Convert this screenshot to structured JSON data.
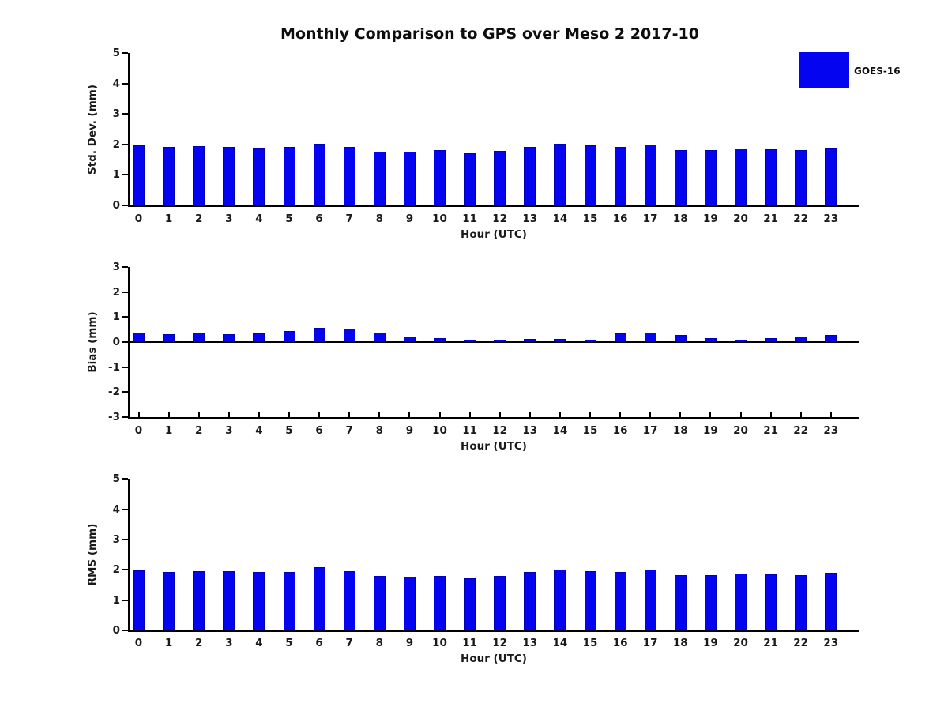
{
  "title": "Monthly Comparison to GPS over Meso 2 2017-10",
  "legend": {
    "label": "GOES-16",
    "color": "#0404f0"
  },
  "colors": {
    "bar": "#0404f0",
    "bar_edge": "#0000b4",
    "axis": "#000000"
  },
  "chart_data": [
    {
      "type": "bar",
      "name": "std-dev",
      "ylabel": "Std. Dev. (mm)",
      "xlabel": "Hour (UTC)",
      "legend_entries": [
        "GOES-16"
      ],
      "grid": false,
      "ylim": [
        0,
        5
      ],
      "yticks": [
        "0",
        "1",
        "2",
        "3",
        "4",
        "5"
      ],
      "categories": [
        "0",
        "1",
        "2",
        "3",
        "4",
        "5",
        "6",
        "7",
        "8",
        "9",
        "10",
        "11",
        "12",
        "13",
        "14",
        "15",
        "16",
        "17",
        "18",
        "19",
        "20",
        "21",
        "22",
        "23"
      ],
      "values": [
        1.97,
        1.91,
        1.95,
        1.91,
        1.89,
        1.91,
        2.01,
        1.92,
        1.77,
        1.77,
        1.81,
        1.72,
        1.78,
        1.93,
        2.02,
        1.96,
        1.91,
        2.0,
        1.81,
        1.81,
        1.86,
        1.83,
        1.82,
        1.89
      ]
    },
    {
      "type": "bar",
      "name": "bias",
      "ylabel": "Bias (mm)",
      "xlabel": "Hour (UTC)",
      "legend_entries": [
        "GOES-16"
      ],
      "grid": false,
      "ylim": [
        -3,
        3
      ],
      "yticks": [
        "-3",
        "-2",
        "-1",
        "0",
        "1",
        "2",
        "3"
      ],
      "categories": [
        "0",
        "1",
        "2",
        "3",
        "4",
        "5",
        "6",
        "7",
        "8",
        "9",
        "10",
        "11",
        "12",
        "13",
        "14",
        "15",
        "16",
        "17",
        "18",
        "19",
        "20",
        "21",
        "22",
        "23"
      ],
      "values": [
        0.37,
        0.31,
        0.37,
        0.31,
        0.36,
        0.43,
        0.58,
        0.55,
        0.39,
        0.23,
        0.17,
        0.1,
        0.09,
        0.13,
        0.12,
        0.11,
        0.36,
        0.37,
        0.27,
        0.17,
        0.08,
        0.17,
        0.21,
        0.27
      ]
    },
    {
      "type": "bar",
      "name": "rms",
      "ylabel": "RMS (mm)",
      "xlabel": "Hour (UTC)",
      "legend_entries": [
        "GOES-16"
      ],
      "grid": false,
      "ylim": [
        0,
        5
      ],
      "yticks": [
        "0",
        "1",
        "2",
        "3",
        "4",
        "5"
      ],
      "categories": [
        "0",
        "1",
        "2",
        "3",
        "4",
        "5",
        "6",
        "7",
        "8",
        "9",
        "10",
        "11",
        "12",
        "13",
        "14",
        "15",
        "16",
        "17",
        "18",
        "19",
        "20",
        "21",
        "22",
        "23"
      ],
      "values": [
        1.98,
        1.92,
        1.95,
        1.95,
        1.93,
        1.94,
        2.09,
        1.96,
        1.79,
        1.78,
        1.8,
        1.73,
        1.79,
        1.93,
        2.02,
        1.96,
        1.94,
        2.0,
        1.83,
        1.83,
        1.87,
        1.84,
        1.83,
        1.9
      ]
    }
  ]
}
